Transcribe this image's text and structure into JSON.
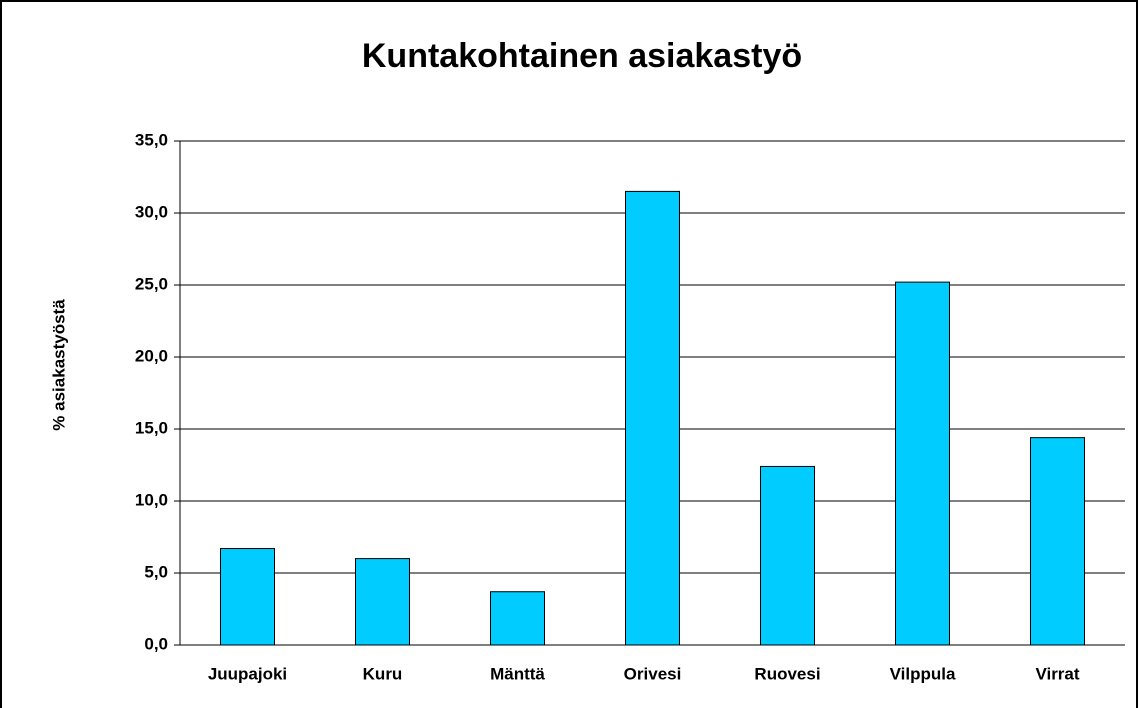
{
  "chart_data": {
    "type": "bar",
    "title": "Kuntakohtainen asiakastyö",
    "y_label": "% asiakastyöstä",
    "categories": [
      "Juupajoki",
      "Kuru",
      "Mänttä",
      "Orivesi",
      "Ruovesi",
      "Vilppula",
      "Virrat"
    ],
    "values": [
      6.7,
      6.0,
      3.7,
      31.5,
      12.4,
      25.2,
      14.4
    ],
    "color": "#00ccff",
    "ylim": [
      0,
      35
    ],
    "yticks": [
      {
        "value": 0,
        "label": "0,0"
      },
      {
        "value": 5,
        "label": "5,0"
      },
      {
        "value": 10,
        "label": "10,0"
      },
      {
        "value": 15,
        "label": "15,0"
      },
      {
        "value": 20,
        "label": "20,0"
      },
      {
        "value": 25,
        "label": "25,0"
      },
      {
        "value": 30,
        "label": "30,0"
      },
      {
        "value": 35,
        "label": "35,0"
      }
    ],
    "grid": true
  }
}
